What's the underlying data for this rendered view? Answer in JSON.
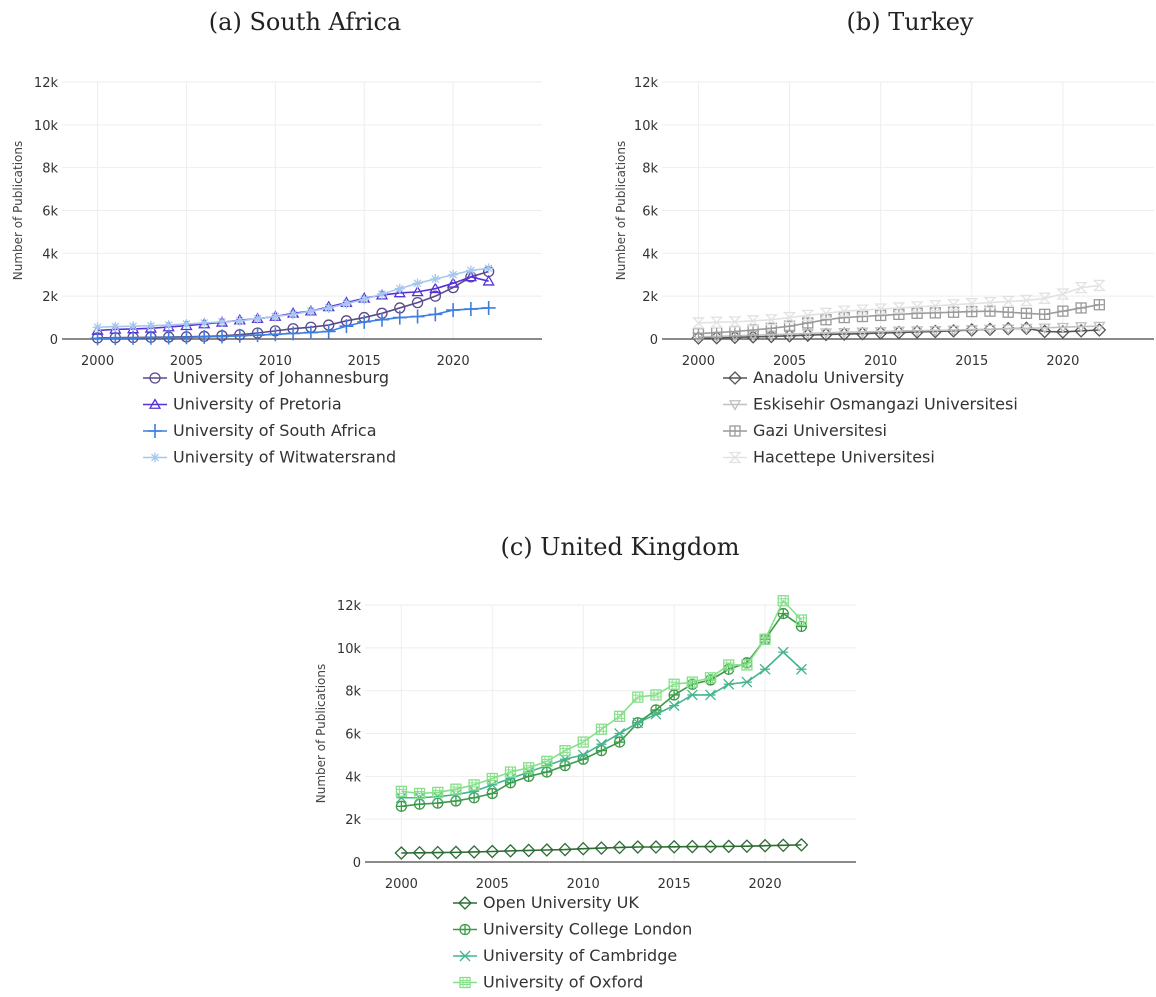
{
  "chart_data": [
    {
      "type": "line",
      "title": "(a) South Africa",
      "ylabel": "Number of Publications",
      "xlabel": "",
      "xlim": [
        1998,
        2025
      ],
      "ylim": [
        0,
        12000
      ],
      "xticks": [
        2000,
        2005,
        2010,
        2015,
        2020
      ],
      "xtick_labels": [
        "2000",
        "2005",
        "2010",
        "2015",
        "2020"
      ],
      "yticks": [
        0,
        2000,
        4000,
        6000,
        8000,
        10000,
        12000
      ],
      "ytick_labels": [
        "0",
        "2k",
        "4k",
        "6k",
        "8k",
        "10k",
        "12k"
      ],
      "grid": true,
      "legend_position": "below",
      "x": [
        2000,
        2001,
        2002,
        2003,
        2004,
        2005,
        2006,
        2007,
        2008,
        2009,
        2010,
        2011,
        2012,
        2013,
        2014,
        2015,
        2016,
        2017,
        2018,
        2019,
        2020,
        2021,
        2022
      ],
      "series": [
        {
          "name": "University of Johannesburg",
          "color": "#5a4a8c",
          "marker": "circle",
          "values": [
            50,
            60,
            70,
            80,
            90,
            100,
            120,
            150,
            200,
            280,
            380,
            480,
            550,
            650,
            850,
            1000,
            1200,
            1450,
            1700,
            2000,
            2400,
            2900,
            3150
          ]
        },
        {
          "name": "University of Pretoria",
          "color": "#5533d6",
          "marker": "triangle",
          "values": [
            400,
            450,
            470,
            500,
            560,
            620,
            700,
            780,
            880,
            950,
            1050,
            1200,
            1300,
            1500,
            1700,
            1900,
            2050,
            2150,
            2200,
            2350,
            2600,
            2900,
            2700
          ]
        },
        {
          "name": "University of South Africa",
          "color": "#3d7fe0",
          "marker": "plus",
          "values": [
            30,
            40,
            50,
            60,
            70,
            80,
            100,
            120,
            150,
            180,
            220,
            260,
            300,
            350,
            600,
            800,
            900,
            1000,
            1050,
            1150,
            1350,
            1400,
            1450
          ]
        },
        {
          "name": "University of Witwatersrand",
          "color": "#a6c8f0",
          "marker": "star",
          "values": [
            550,
            580,
            600,
            620,
            650,
            700,
            750,
            800,
            850,
            950,
            1050,
            1150,
            1300,
            1450,
            1650,
            1850,
            2100,
            2350,
            2600,
            2800,
            3000,
            3200,
            3300
          ]
        }
      ]
    },
    {
      "type": "line",
      "title": "(b) Turkey",
      "ylabel": "Number of Publications",
      "xlabel": "",
      "xlim": [
        1998,
        2025
      ],
      "ylim": [
        0,
        12000
      ],
      "xticks": [
        2000,
        2005,
        2010,
        2015,
        2020
      ],
      "xtick_labels": [
        "2000",
        "2005",
        "2010",
        "2015",
        "2020"
      ],
      "yticks": [
        0,
        2000,
        4000,
        6000,
        8000,
        10000,
        12000
      ],
      "ytick_labels": [
        "0",
        "2k",
        "4k",
        "6k",
        "8k",
        "10k",
        "12k"
      ],
      "grid": true,
      "legend_position": "below",
      "x": [
        2000,
        2001,
        2002,
        2003,
        2004,
        2005,
        2006,
        2007,
        2008,
        2009,
        2010,
        2011,
        2012,
        2013,
        2014,
        2015,
        2016,
        2017,
        2018,
        2019,
        2020,
        2021,
        2022
      ],
      "series": [
        {
          "name": "Anadolu University",
          "color": "#555555",
          "marker": "diamond",
          "values": [
            50,
            60,
            80,
            100,
            120,
            150,
            180,
            210,
            230,
            250,
            280,
            300,
            330,
            350,
            380,
            420,
            450,
            480,
            500,
            350,
            330,
            380,
            420
          ]
        },
        {
          "name": "Eskisehir Osmangazi Universitesi",
          "color": "#c0c0c0",
          "marker": "triangle-down",
          "values": [
            100,
            120,
            150,
            180,
            200,
            230,
            260,
            290,
            310,
            330,
            350,
            370,
            390,
            400,
            420,
            440,
            460,
            480,
            500,
            520,
            550,
            580,
            600
          ]
        },
        {
          "name": "Gazi Universitesi",
          "color": "#9a9a9a",
          "marker": "square-cross",
          "values": [
            250,
            300,
            350,
            420,
            500,
            600,
            750,
            900,
            1000,
            1050,
            1100,
            1150,
            1200,
            1220,
            1250,
            1280,
            1300,
            1250,
            1200,
            1150,
            1300,
            1450,
            1600
          ]
        },
        {
          "name": "Hacettepe Universitesi",
          "color": "#e2e2e2",
          "marker": "hourglass",
          "values": [
            750,
            780,
            800,
            850,
            900,
            1000,
            1100,
            1200,
            1300,
            1350,
            1400,
            1450,
            1500,
            1550,
            1600,
            1650,
            1700,
            1750,
            1800,
            1900,
            2100,
            2400,
            2500
          ]
        }
      ]
    },
    {
      "type": "line",
      "title": "(c) United Kingdom",
      "ylabel": "Number of Publications",
      "xlabel": "",
      "xlim": [
        1998,
        2025
      ],
      "ylim": [
        0,
        12000
      ],
      "xticks": [
        2000,
        2005,
        2010,
        2015,
        2020
      ],
      "xtick_labels": [
        "2000",
        "2005",
        "2010",
        "2015",
        "2020"
      ],
      "yticks": [
        0,
        2000,
        4000,
        6000,
        8000,
        10000,
        12000
      ],
      "ytick_labels": [
        "0",
        "2k",
        "4k",
        "6k",
        "8k",
        "10k",
        "12k"
      ],
      "grid": true,
      "legend_position": "below",
      "x": [
        2000,
        2001,
        2002,
        2003,
        2004,
        2005,
        2006,
        2007,
        2008,
        2009,
        2010,
        2011,
        2012,
        2013,
        2014,
        2015,
        2016,
        2017,
        2018,
        2019,
        2020,
        2021,
        2022
      ],
      "series": [
        {
          "name": "Open University UK",
          "color": "#2e6b35",
          "marker": "diamond",
          "values": [
            420,
            430,
            440,
            450,
            470,
            490,
            520,
            540,
            560,
            580,
            620,
            650,
            680,
            700,
            700,
            710,
            720,
            720,
            730,
            740,
            760,
            780,
            800
          ]
        },
        {
          "name": "University College London",
          "color": "#3c9a48",
          "marker": "circle-cross",
          "values": [
            2600,
            2700,
            2750,
            2850,
            3000,
            3200,
            3700,
            4000,
            4200,
            4500,
            4800,
            5200,
            5600,
            6500,
            7100,
            7800,
            8300,
            8500,
            9000,
            9300,
            10400,
            11600,
            11000
          ]
        },
        {
          "name": "University of Cambridge",
          "color": "#45b58c",
          "marker": "x-cross",
          "values": [
            3000,
            3000,
            3050,
            3150,
            3300,
            3600,
            3900,
            4200,
            4500,
            4800,
            5000,
            5500,
            6000,
            6500,
            6900,
            7300,
            7800,
            7800,
            8300,
            8400,
            9000,
            9800,
            9000
          ]
        },
        {
          "name": "University of Oxford",
          "color": "#86e08a",
          "marker": "square-hash",
          "values": [
            3300,
            3200,
            3250,
            3400,
            3600,
            3900,
            4200,
            4400,
            4700,
            5200,
            5600,
            6200,
            6800,
            7700,
            7800,
            8300,
            8400,
            8600,
            9200,
            9200,
            10400,
            12200,
            11300
          ]
        }
      ]
    }
  ]
}
